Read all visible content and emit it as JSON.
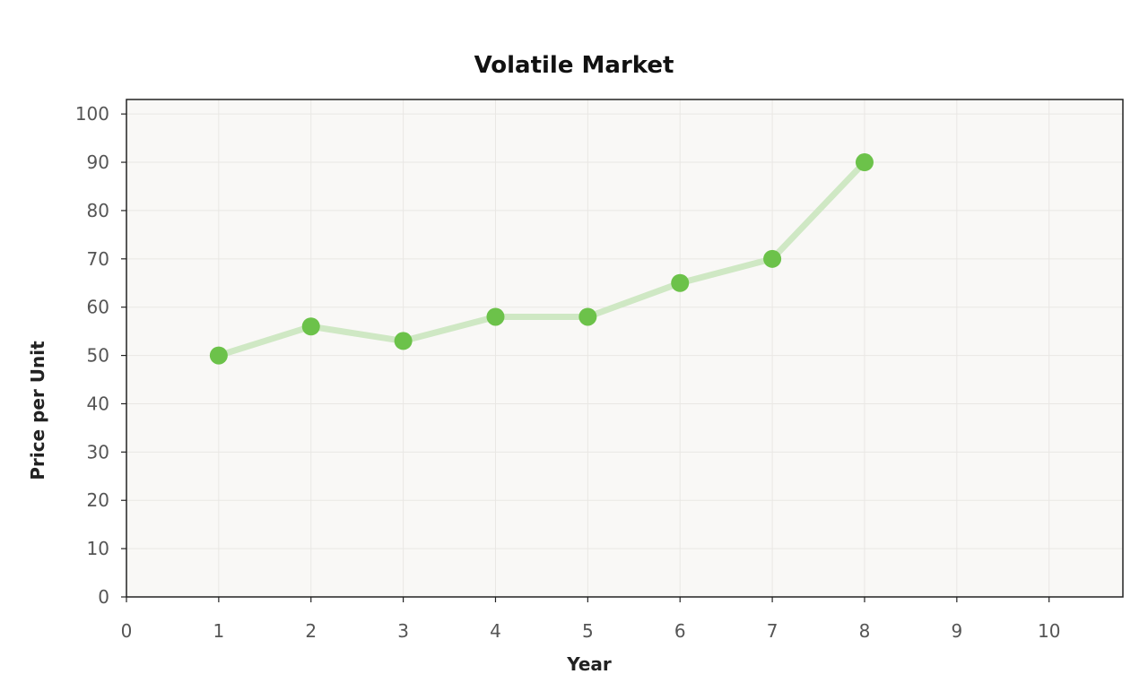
{
  "chart_data": {
    "type": "line",
    "title": "Volatile Market",
    "xlabel": "Year",
    "ylabel": "Price per Unit",
    "xlim": [
      0,
      10.8
    ],
    "ylim": [
      0,
      103
    ],
    "xticks": [
      0,
      1,
      2,
      3,
      4,
      5,
      6,
      7,
      8,
      9,
      10
    ],
    "yticks": [
      0,
      10,
      20,
      30,
      40,
      50,
      60,
      70,
      80,
      90,
      100
    ],
    "grid": true,
    "series": [
      {
        "x": [
          1,
          2,
          3,
          4,
          5,
          6,
          7,
          8
        ],
        "values": [
          50,
          56,
          53,
          58,
          58,
          65,
          70,
          90
        ]
      }
    ],
    "colors": {
      "marker": "#6cc24a",
      "line": "#cfe8c4",
      "plot_background": "#f9f8f6",
      "grid": "#e9e7e4",
      "frame": "#222222"
    }
  }
}
